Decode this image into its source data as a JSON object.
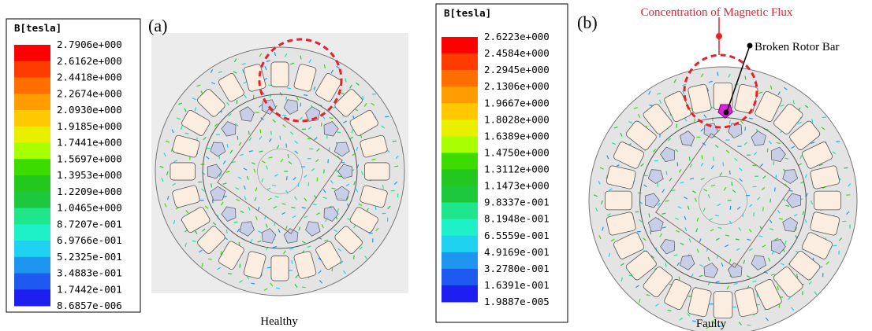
{
  "panels": [
    {
      "label": "(a)",
      "legend_title": "B[tesla]",
      "legend_values": [
        "2.7906e+000",
        "2.6162e+000",
        "2.4418e+000",
        "2.2674e+000",
        "2.0930e+000",
        "1.9185e+000",
        "1.7441e+000",
        "1.5697e+000",
        "1.3953e+000",
        "1.2209e+000",
        "1.0465e+000",
        "8.7207e-001",
        "6.9766e-001",
        "5.2325e-001",
        "3.4883e-001",
        "1.7442e-001",
        "8.6857e-006"
      ],
      "caption": "Healthy"
    },
    {
      "label": "(b)",
      "legend_title": "B[tesla]",
      "legend_values": [
        "2.6223e+000",
        "2.4584e+000",
        "2.2945e+000",
        "2.1306e+000",
        "1.9667e+000",
        "1.8028e+000",
        "1.6389e+000",
        "1.4750e+000",
        "1.3112e+000",
        "1.1473e+000",
        "9.8337e-001",
        "8.1948e-001",
        "6.5559e-001",
        "4.9169e-001",
        "3.2780e-001",
        "1.6391e-001",
        "1.9887e-005"
      ],
      "caption": "Faulty",
      "annotations": [
        "Concentration of Magnetic Flux",
        "Broken Rotor Bar"
      ]
    }
  ],
  "legend_colors": [
    "#ff0000",
    "#ff3c00",
    "#ff6e00",
    "#ff9c00",
    "#ffc800",
    "#e8f000",
    "#a8ff00",
    "#3cdc00",
    "#22c81e",
    "#1ec83c",
    "#1ee68c",
    "#1ef0c8",
    "#1ed2f0",
    "#1e96f0",
    "#1e5af0",
    "#1e1ef0"
  ]
}
